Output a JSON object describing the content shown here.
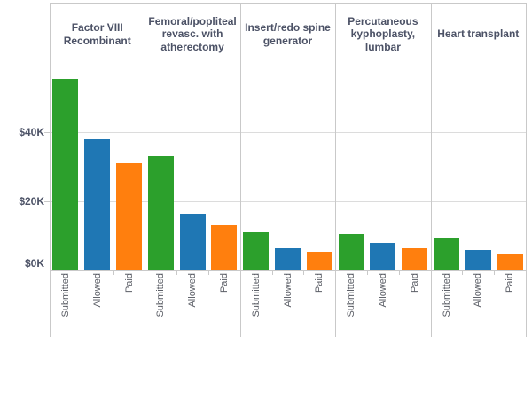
{
  "chart_data": {
    "type": "bar",
    "title": "",
    "xlabel": "",
    "ylabel": "",
    "categories": [
      "Factor VIII Recombinant",
      "Femoral/popliteal revasc. with atherectomy",
      "Insert/redo spine generator",
      "Percutaneous kyphoplasty, lumbar",
      "Heart transplant"
    ],
    "sub_categories": [
      "Submitted",
      "Allowed",
      "Paid"
    ],
    "series": [
      {
        "name": "Submitted",
        "color": "#2ca02c",
        "values_k": [
          55.5,
          33,
          11,
          10.5,
          9.5
        ]
      },
      {
        "name": "Allowed",
        "color": "#1f77b4",
        "values_k": [
          38,
          16.5,
          6.5,
          8,
          6
        ]
      },
      {
        "name": "Paid",
        "color": "#ff7f0e",
        "values_k": [
          31,
          13,
          5.5,
          6.5,
          4.5
        ]
      }
    ],
    "y_axis": {
      "tick_labels": [
        "$0K",
        "$20K",
        "$40K"
      ],
      "tick_values_k": [
        0,
        20,
        40
      ],
      "range_k": [
        0,
        59
      ]
    },
    "unit": "USD thousands",
    "grid": "horizontal gridlines at $20K and $40K, vertical panel separators",
    "legend": "none (measure names shown as rotated x-axis labels under each bar)"
  },
  "colors": {
    "bar_green": "#2ca02c",
    "bar_blue": "#1f77b4",
    "bar_orange": "#ff7f0e",
    "border": "#c9c9c9",
    "gridline": "#dcdcdc",
    "header_text": "#4c5266",
    "axis_text": "#5b5e66"
  }
}
